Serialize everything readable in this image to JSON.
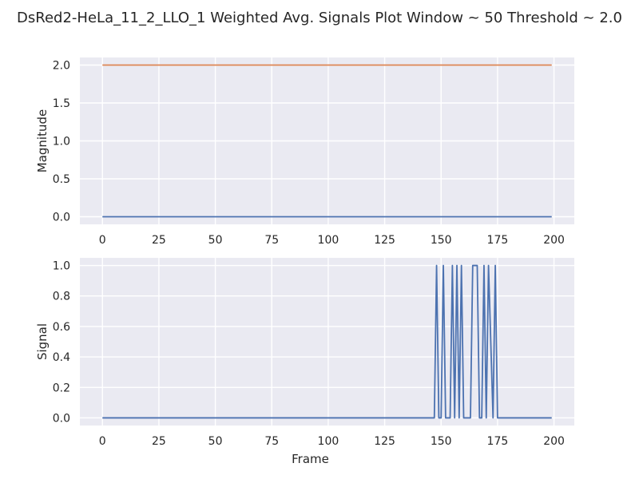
{
  "title": "DsRed2-HeLa_11_2_LLO_1 Weighted Avg. Signals Plot Window ~ 50 Threshold ~ 2.0",
  "colors": {
    "axes_bg": "#eaeaf2",
    "grid": "#ffffff",
    "blue": "#4c72b0",
    "orange": "#dd8452",
    "text": "#262626"
  },
  "chart_data": [
    {
      "type": "line",
      "xlabel": "",
      "ylabel": "Magnitude",
      "xlim": [
        -10,
        209
      ],
      "ylim": [
        -0.1,
        2.1
      ],
      "xticks": [
        0,
        25,
        50,
        75,
        100,
        125,
        150,
        175,
        200
      ],
      "xtick_labels": [
        "0",
        "25",
        "50",
        "75",
        "100",
        "125",
        "150",
        "175",
        "200"
      ],
      "yticks": [
        0.0,
        0.5,
        1.0,
        1.5,
        2.0
      ],
      "ytick_labels": [
        "0.0",
        "0.5",
        "1.0",
        "1.5",
        "2.0"
      ],
      "grid": true,
      "series": [
        {
          "color": "orange",
          "x": [
            0,
            199
          ],
          "y": [
            2.0,
            2.0
          ]
        },
        {
          "color": "blue",
          "x": [
            0,
            199
          ],
          "y": [
            0.0,
            0.0
          ]
        }
      ]
    },
    {
      "type": "line",
      "xlabel": "Frame",
      "ylabel": "Signal",
      "xlim": [
        -10,
        209
      ],
      "ylim": [
        -0.05,
        1.05
      ],
      "xticks": [
        0,
        25,
        50,
        75,
        100,
        125,
        150,
        175,
        200
      ],
      "xtick_labels": [
        "0",
        "25",
        "50",
        "75",
        "100",
        "125",
        "150",
        "175",
        "200"
      ],
      "yticks": [
        0.0,
        0.2,
        0.4,
        0.6,
        0.8,
        1.0
      ],
      "ytick_labels": [
        "0.0",
        "0.2",
        "0.4",
        "0.6",
        "0.8",
        "1.0"
      ],
      "grid": true,
      "series": [
        {
          "color": "blue",
          "x": [
            0,
            147,
            148,
            149,
            150,
            151,
            152,
            154,
            155,
            156,
            157,
            158,
            159,
            160,
            163,
            164,
            165,
            166,
            167,
            168,
            169,
            170,
            171,
            173,
            174,
            175,
            199
          ],
          "y": [
            0,
            0,
            1,
            0,
            0,
            1,
            0,
            0,
            1,
            0,
            1,
            0,
            1,
            0,
            0,
            1,
            1,
            1,
            0,
            0,
            1,
            0,
            1,
            0,
            1,
            0,
            0
          ]
        }
      ]
    }
  ]
}
